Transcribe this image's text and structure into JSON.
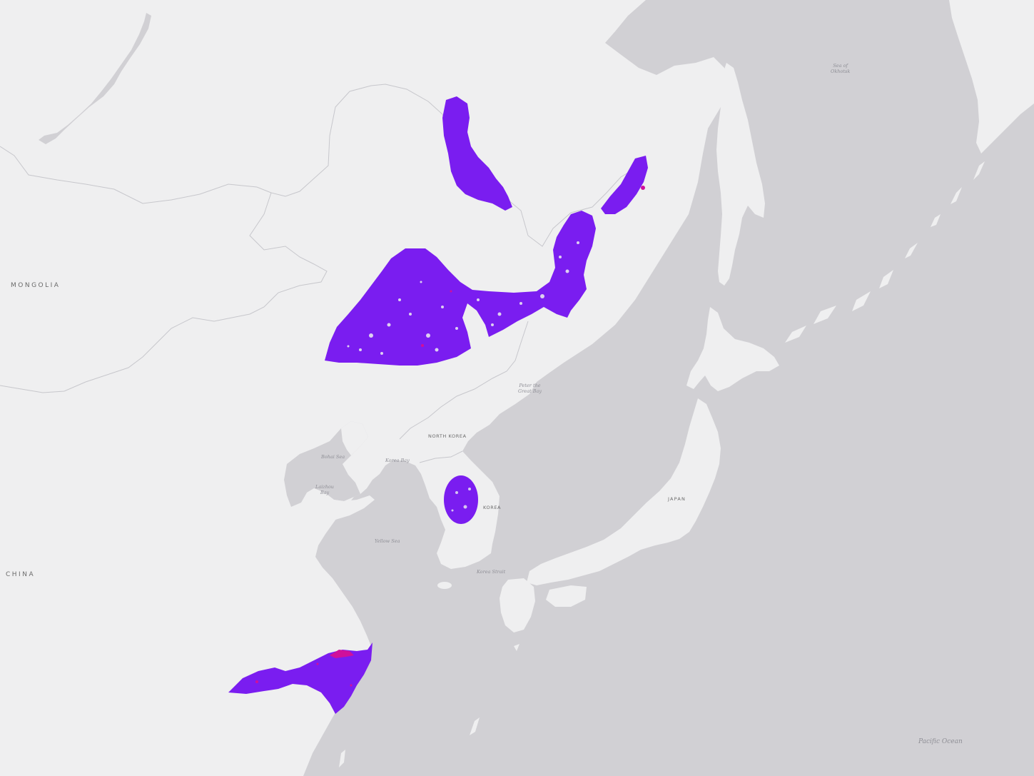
{
  "map": {
    "labels": {
      "mongolia": "MONGOLIA",
      "china": "CHINA",
      "north_korea": "NORTH KOREA",
      "south_korea": "KOREA",
      "japan": "JAPAN",
      "sea_of_okhotsk_1": "Sea of",
      "sea_of_okhotsk_2": "Okhotsk",
      "peter_bay_1": "Peter the",
      "peter_bay_2": "Great Bay",
      "bohai_sea": "Bohai Sea",
      "korea_bay": "Korea Bay",
      "laizhou_bay_1": "Laizhou",
      "laizhou_bay_2": "Bay",
      "yellow_sea": "Yellow Sea",
      "korea_strait": "Korea Strait",
      "pacific_ocean": "Pacific Ocean"
    },
    "colors": {
      "land": "#efeff0",
      "water": "#d1d0d4",
      "border": "#c7c7cc",
      "range_fill": "#7a1df0",
      "range_accent": "#d0109a"
    }
  }
}
